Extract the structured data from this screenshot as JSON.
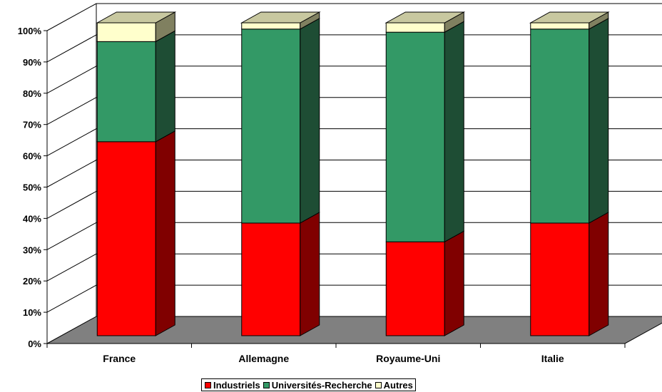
{
  "chart_data": {
    "type": "bar",
    "stacked": true,
    "percent": true,
    "three_d": true,
    "categories": [
      "France",
      "Allemagne",
      "Royaume-Uni",
      "Italie"
    ],
    "series": [
      {
        "name": "Industriels",
        "values": [
          62,
          36,
          30,
          36
        ],
        "color": "#ff0000",
        "side_color": "#800000"
      },
      {
        "name": "Universités-Recherche",
        "values": [
          32,
          62,
          67,
          62
        ],
        "color": "#339966",
        "side_color": "#1e4d34"
      },
      {
        "name": "Autres",
        "values": [
          6,
          2,
          3,
          2
        ],
        "color": "#ffffcc",
        "side_color": "#808060"
      }
    ],
    "y_ticks": [
      "0%",
      "10%",
      "20%",
      "30%",
      "40%",
      "50%",
      "60%",
      "70%",
      "80%",
      "90%",
      "100%"
    ],
    "ylim": [
      0,
      100
    ],
    "grid": true,
    "legend_position": "bottom"
  },
  "colors": {
    "floor": "#808080",
    "grid": "#000000",
    "background": "#ffffff"
  }
}
